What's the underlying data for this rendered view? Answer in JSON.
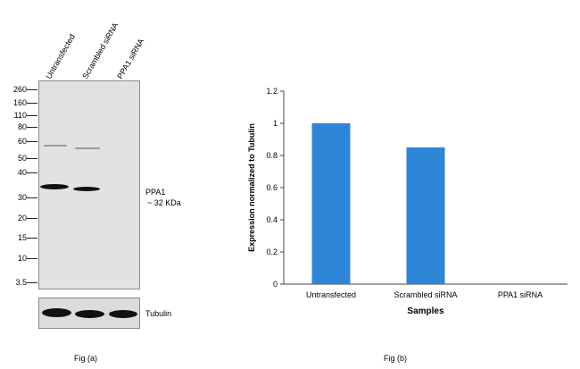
{
  "panel_a": {
    "lanes": [
      "Untransfected",
      "Scrambled siRNA",
      "PPA1 siRNA"
    ],
    "mw_markers": [
      "260",
      "160",
      "110",
      "80",
      "60",
      "50",
      "40",
      "30",
      "20",
      "15",
      "10",
      "3.5"
    ],
    "band_label_line1": "PPA1",
    "band_label_line2": "~ 32 KDa",
    "loading_control": "Tubulin",
    "caption": "Fig (a)"
  },
  "panel_b": {
    "caption": "Fig (b)"
  },
  "chart_data": {
    "type": "bar",
    "categories": [
      "Untransfected",
      "Scrambled siRNA",
      "PPA1 siRNA"
    ],
    "values": [
      1.0,
      0.85,
      0.0
    ],
    "title": "",
    "xlabel": "Samples",
    "ylabel": "Expression  normalized to Tubulin",
    "ylim": [
      0,
      1.2
    ],
    "yticks": [
      "0",
      "0.2",
      "0.4",
      "0.6",
      "0.8",
      "1",
      "1.2"
    ],
    "bar_color": "#2e86d8",
    "grid": false,
    "legend": "none"
  }
}
